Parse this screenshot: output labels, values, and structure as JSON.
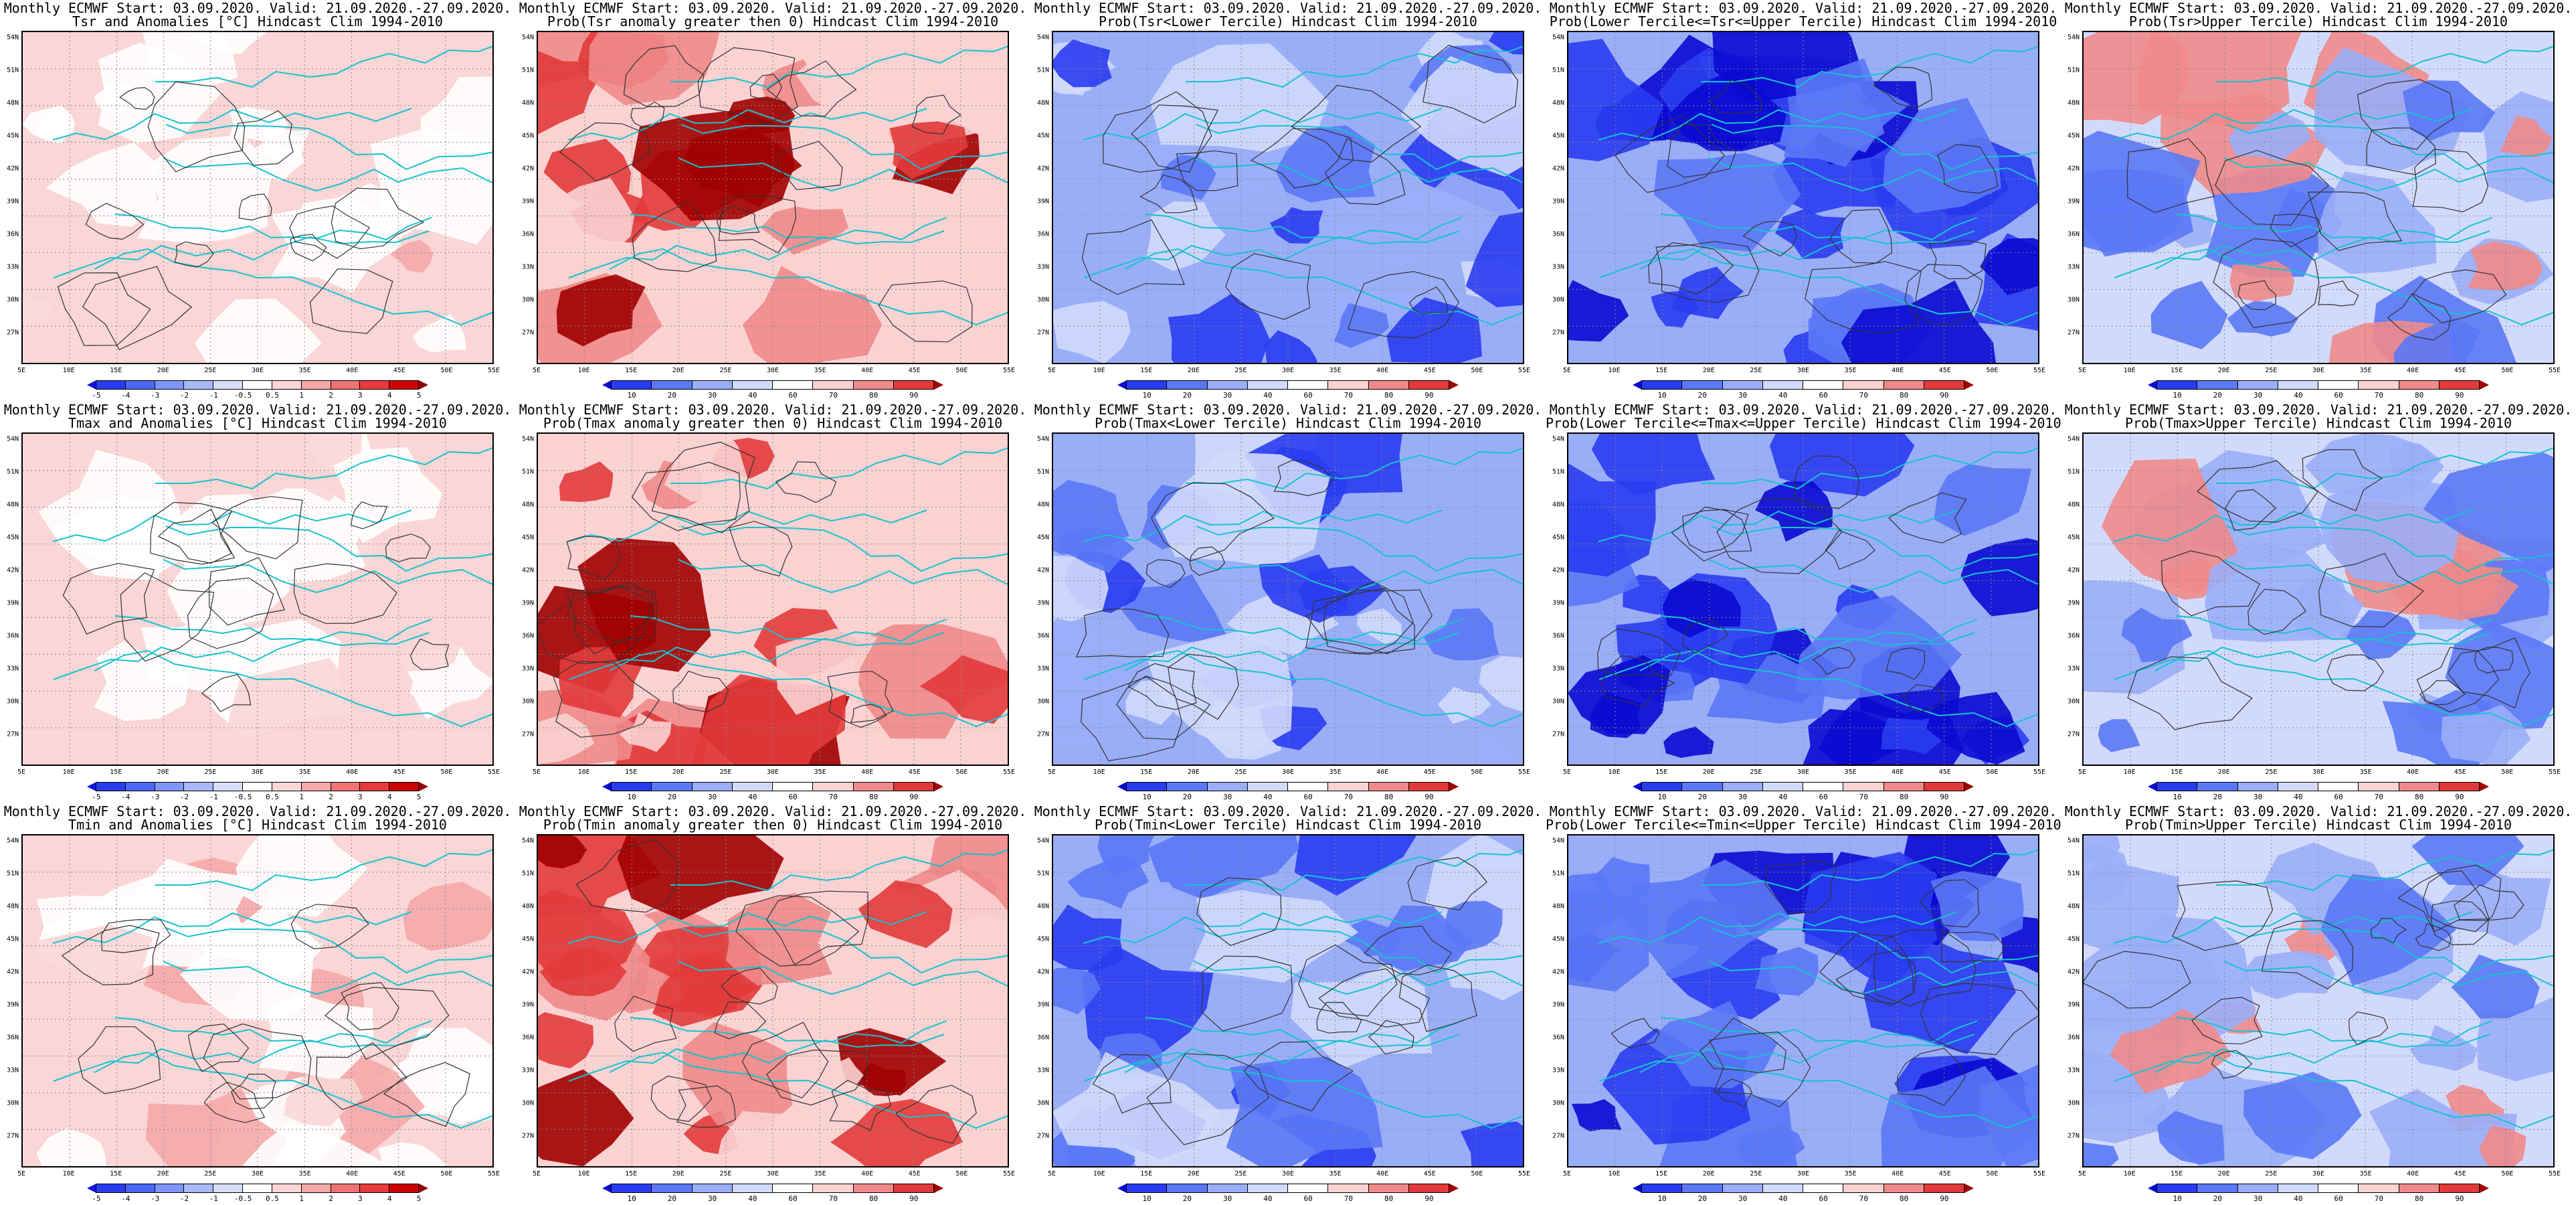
{
  "x_ticks": [
    "5E",
    "10E",
    "15E",
    "20E",
    "25E",
    "30E",
    "35E",
    "40E",
    "45E",
    "50E",
    "55E"
  ],
  "y_ticks": [
    "54N",
    "51N",
    "48N",
    "45N",
    "42N",
    "39N",
    "36N",
    "33N",
    "30N",
    "27N"
  ],
  "colorbars": {
    "anomaly": {
      "labels": [
        "-5",
        "-4",
        "-3",
        "-2",
        "-1",
        "-0.5",
        "0.5",
        "1",
        "2",
        "3",
        "4",
        "5"
      ],
      "colors": [
        "#1010e0",
        "#2a3cf0",
        "#4a68f5",
        "#7e96f8",
        "#a9b8fa",
        "#d8def9",
        "#ffffff",
        "#fad6d6",
        "#f5a8a8",
        "#ef7373",
        "#e73a3a",
        "#cc0000",
        "#900000"
      ]
    },
    "prob": {
      "labels": [
        "10",
        "20",
        "30",
        "40",
        "60",
        "70",
        "80",
        "90"
      ],
      "colors": [
        "#0a0ad0",
        "#2a3cf0",
        "#5a78f6",
        "#9aaef8",
        "#d2dafb",
        "#ffffff",
        "#fad2d2",
        "#f08a8a",
        "#e23a3a",
        "#a00000"
      ]
    }
  },
  "panels": [
    {
      "title1": "Monthly ECMWF Start: 03.09.2020. Valid: 21.09.2020.-27.09.2020.",
      "title2": "Tsr and Anomalies [°C] Hindcast Clim 1994-2010",
      "type": "anomaly",
      "theme": "warm",
      "level": 0.45
    },
    {
      "title1": "Monthly ECMWF Start: 03.09.2020. Valid: 21.09.2020.-27.09.2020.",
      "title2": "Prob(Tsr anomaly greater then 0) Hindcast Clim 1994-2010",
      "type": "prob",
      "theme": "warm",
      "level": 0.75
    },
    {
      "title1": "Monthly ECMWF Start: 03.09.2020. Valid: 21.09.2020.-27.09.2020.",
      "title2": "Prob(Tsr<Lower Tercile) Hindcast Clim 1994-2010",
      "type": "prob",
      "theme": "cold",
      "level": 0.85
    },
    {
      "title1": "Monthly ECMWF Start: 03.09.2020. Valid: 21.09.2020.-27.09.2020.",
      "title2": "Prob(Lower Tercile<=Tsr<=Upper Tercile) Hindcast Clim 1994-2010",
      "type": "prob",
      "theme": "cold",
      "level": 0.55
    },
    {
      "title1": "Monthly ECMWF Start: 03.09.2020. Valid: 21.09.2020.-27.09.2020.",
      "title2": "Prob(Tsr>Upper Tercile) Hindcast Clim 1994-2010",
      "type": "prob",
      "theme": "mixed",
      "level": 0.5
    },
    {
      "title1": "Monthly ECMWF Start: 03.09.2020. Valid: 21.09.2020.-27.09.2020.",
      "title2": "Tmax and Anomalies [°C] Hindcast Clim 1994-2010",
      "type": "anomaly",
      "theme": "warm",
      "level": 0.4
    },
    {
      "title1": "Monthly ECMWF Start: 03.09.2020. Valid: 21.09.2020.-27.09.2020.",
      "title2": "Prob(Tmax anomaly greater then 0) Hindcast Clim 1994-2010",
      "type": "prob",
      "theme": "warm",
      "level": 0.7
    },
    {
      "title1": "Monthly ECMWF Start: 03.09.2020. Valid: 21.09.2020.-27.09.2020.",
      "title2": "Prob(Tmax<Lower Tercile) Hindcast Clim 1994-2010",
      "type": "prob",
      "theme": "cold",
      "level": 0.8
    },
    {
      "title1": "Monthly ECMWF Start: 03.09.2020. Valid: 21.09.2020.-27.09.2020.",
      "title2": "Prob(Lower Tercile<=Tmax<=Upper Tercile) Hindcast Clim 1994-2010",
      "type": "prob",
      "theme": "cold",
      "level": 0.55
    },
    {
      "title1": "Monthly ECMWF Start: 03.09.2020. Valid: 21.09.2020.-27.09.2020.",
      "title2": "Prob(Tmax>Upper Tercile) Hindcast Clim 1994-2010",
      "type": "prob",
      "theme": "mixed",
      "level": 0.5
    },
    {
      "title1": "Monthly ECMWF Start: 03.09.2020. Valid: 21.09.2020.-27.09.2020.",
      "title2": "Tmin and Anomalies [°C] Hindcast Clim 1994-2010",
      "type": "anomaly",
      "theme": "warm",
      "level": 0.45
    },
    {
      "title1": "Monthly ECMWF Start: 03.09.2020. Valid: 21.09.2020.-27.09.2020.",
      "title2": "Prob(Tmin anomaly greater then 0) Hindcast Clim 1994-2010",
      "type": "prob",
      "theme": "warm",
      "level": 0.85
    },
    {
      "title1": "Monthly ECMWF Start: 03.09.2020. Valid: 21.09.2020.-27.09.2020.",
      "title2": "Prob(Tmin<Lower Tercile) Hindcast Clim 1994-2010",
      "type": "prob",
      "theme": "cold",
      "level": 0.85
    },
    {
      "title1": "Monthly ECMWF Start: 03.09.2020. Valid: 21.09.2020.-27.09.2020.",
      "title2": "Prob(Lower Tercile<=Tmin<=Upper Tercile) Hindcast Clim 1994-2010",
      "type": "prob",
      "theme": "cold",
      "level": 0.55
    },
    {
      "title1": "Monthly ECMWF Start: 03.09.2020. Valid: 21.09.2020.-27.09.2020.",
      "title2": "Prob(Tmin>Upper Tercile) Hindcast Clim 1994-2010",
      "type": "prob",
      "theme": "mixed",
      "level": 0.5
    }
  ]
}
